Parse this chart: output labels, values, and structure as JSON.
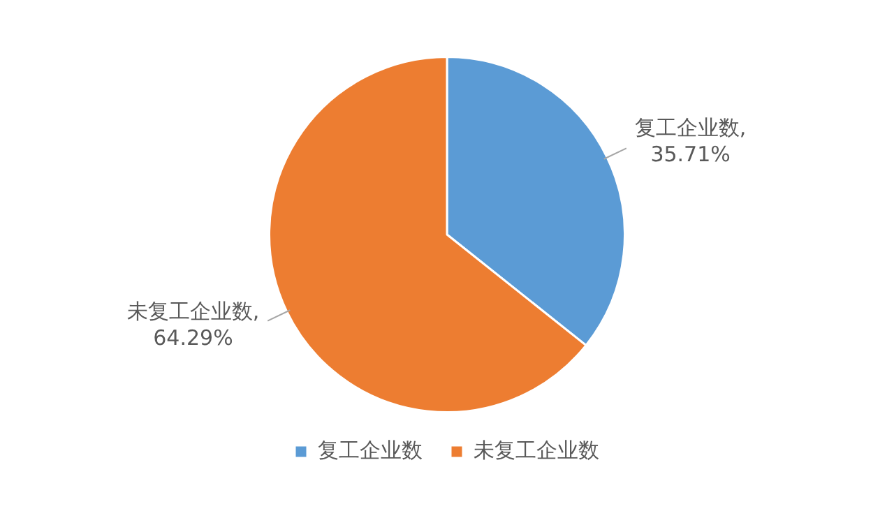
{
  "chart_data": {
    "type": "pie",
    "categories": [
      "复工企业数",
      "未复工企业数"
    ],
    "values": [
      35.71,
      64.29
    ],
    "value_labels": [
      "复工企业数, 35.71%",
      "未复工企业数, 64.29%"
    ],
    "colors": [
      "#5b9bd5",
      "#ed7d31"
    ],
    "legend": "bottom"
  }
}
